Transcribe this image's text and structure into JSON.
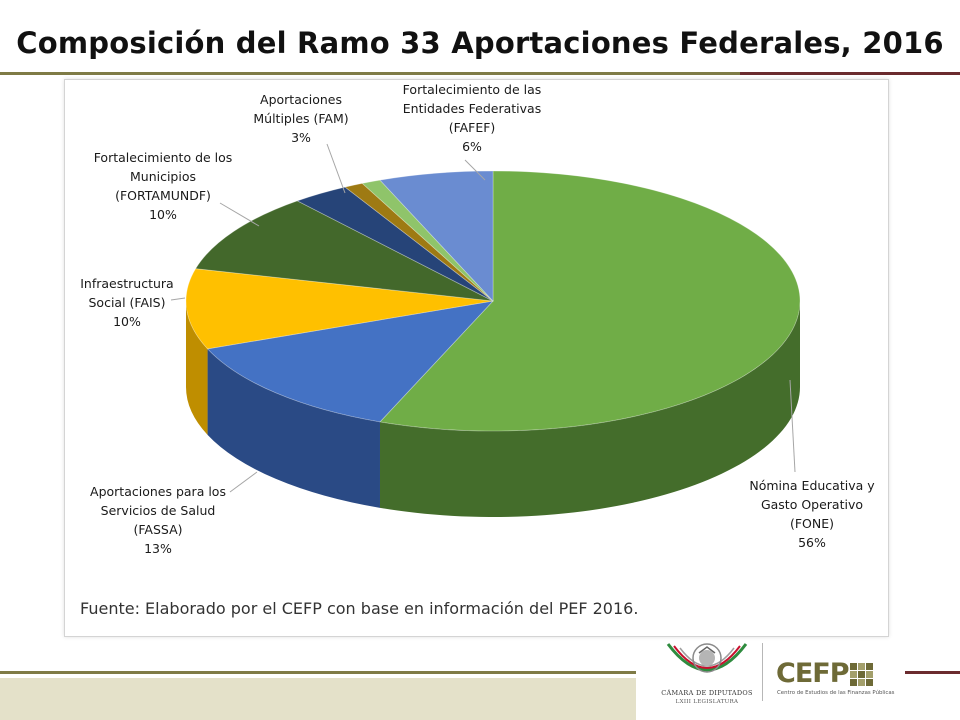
{
  "page": {
    "title": "Composición del Ramo 33 Aportaciones Federales, 2016",
    "source": "Fuente: Elaborado por el CEFP con base en información del PEF 2016.",
    "seal_text_1": "CÁMARA DE DIPUTADOS",
    "seal_text_2": "LXIII LEGISLATURA",
    "logo_word": "CEFP",
    "logo_subtitle": "Centro de Estudios de las Finanzas Públicas"
  },
  "colors": {
    "rule_olive": "#7f7b46",
    "rule_maroon": "#6b2b2e",
    "band": "#e4e1c9"
  },
  "chart_data": {
    "type": "pie",
    "title": "",
    "unit": "%",
    "start_angle_deg": -90,
    "direction": "clockwise",
    "slices": [
      {
        "id": "fone",
        "label": [
          "Nómina Educativa y",
          "Gasto Operativo",
          "(FONE)"
        ],
        "value": 56,
        "value_label": "56%",
        "color": "#70ad47",
        "side_color": "#446d2b"
      },
      {
        "id": "fassa",
        "label": [
          "Aportaciones para los",
          "Servicios de Salud",
          "(FASSA)"
        ],
        "value": 13,
        "value_label": "13%",
        "color": "#4472c4",
        "side_color": "#2a4a85"
      },
      {
        "id": "fais",
        "label": [
          "Infraestructura",
          "Social (FAIS)"
        ],
        "value": 10,
        "value_label": "10%",
        "color": "#ffc000",
        "side_color": "#bf8e00"
      },
      {
        "id": "fortamundf",
        "label": [
          "Fortalecimiento de los",
          "Municipios",
          "(FORTAMUNDF)"
        ],
        "value": 10,
        "value_label": "10%",
        "color": "#43682b",
        "side_color": "#2c451c"
      },
      {
        "id": "fam",
        "label": [
          "Aportaciones",
          "Múltiples (FAM)"
        ],
        "value": 3,
        "value_label": "3%",
        "color": "#264478",
        "side_color": "#172b4d"
      },
      {
        "id": "small1",
        "label": [],
        "value": 1,
        "value_label": "",
        "color": "#9e7a13",
        "side_color": "#6d540d"
      },
      {
        "id": "small2",
        "label": [],
        "value": 1,
        "value_label": "",
        "color": "#8fc46a",
        "side_color": "#5e8a41"
      },
      {
        "id": "fafef",
        "label": [
          "Fortalecimiento de las",
          "Entidades Federativas",
          "(FAFEF)"
        ],
        "value": 6,
        "value_label": "6%",
        "color": "#6a8cd1",
        "side_color": "#44609c"
      }
    ]
  }
}
